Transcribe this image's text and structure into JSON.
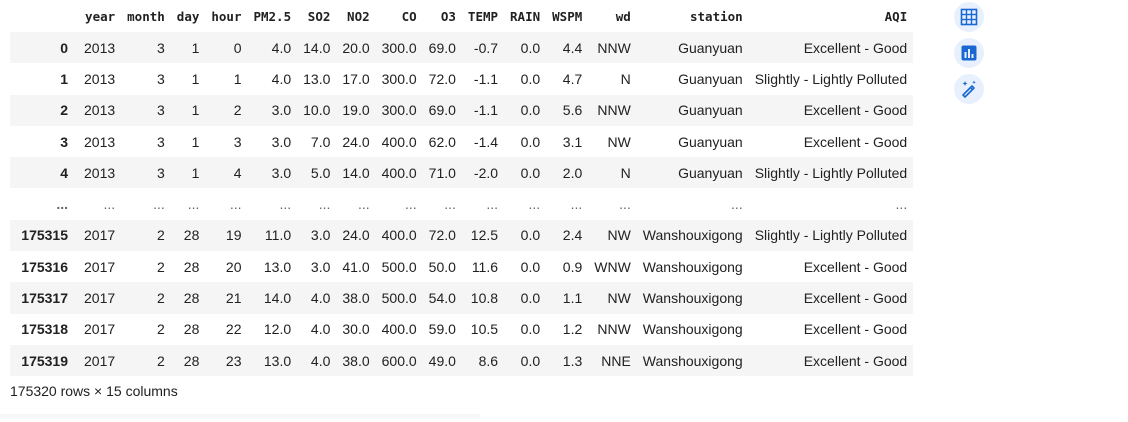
{
  "table": {
    "columns": [
      "year",
      "month",
      "day",
      "hour",
      "PM2.5",
      "SO2",
      "NO2",
      "CO",
      "O3",
      "TEMP",
      "RAIN",
      "WSPM",
      "wd",
      "station",
      "AQI"
    ],
    "rows": [
      {
        "index": "0",
        "cells": [
          "2013",
          "3",
          "1",
          "0",
          "4.0",
          "14.0",
          "20.0",
          "300.0",
          "69.0",
          "-0.7",
          "0.0",
          "4.4",
          "NNW",
          "Guanyuan",
          "Excellent - Good"
        ]
      },
      {
        "index": "1",
        "cells": [
          "2013",
          "3",
          "1",
          "1",
          "4.0",
          "13.0",
          "17.0",
          "300.0",
          "72.0",
          "-1.1",
          "0.0",
          "4.7",
          "N",
          "Guanyuan",
          "Slightly - Lightly Polluted"
        ]
      },
      {
        "index": "2",
        "cells": [
          "2013",
          "3",
          "1",
          "2",
          "3.0",
          "10.0",
          "19.0",
          "300.0",
          "69.0",
          "-1.1",
          "0.0",
          "5.6",
          "NNW",
          "Guanyuan",
          "Excellent - Good"
        ]
      },
      {
        "index": "3",
        "cells": [
          "2013",
          "3",
          "1",
          "3",
          "3.0",
          "7.0",
          "24.0",
          "400.0",
          "62.0",
          "-1.4",
          "0.0",
          "3.1",
          "NW",
          "Guanyuan",
          "Excellent - Good"
        ]
      },
      {
        "index": "4",
        "cells": [
          "2013",
          "3",
          "1",
          "4",
          "3.0",
          "5.0",
          "14.0",
          "400.0",
          "71.0",
          "-2.0",
          "0.0",
          "2.0",
          "N",
          "Guanyuan",
          "Slightly - Lightly Polluted"
        ]
      },
      {
        "index": "...",
        "cells": [
          "...",
          "...",
          "...",
          "...",
          "...",
          "...",
          "...",
          "...",
          "...",
          "...",
          "...",
          "...",
          "...",
          "...",
          "..."
        ]
      },
      {
        "index": "175315",
        "cells": [
          "2017",
          "2",
          "28",
          "19",
          "11.0",
          "3.0",
          "24.0",
          "400.0",
          "72.0",
          "12.5",
          "0.0",
          "2.4",
          "NW",
          "Wanshouxigong",
          "Slightly - Lightly Polluted"
        ]
      },
      {
        "index": "175316",
        "cells": [
          "2017",
          "2",
          "28",
          "20",
          "13.0",
          "3.0",
          "41.0",
          "500.0",
          "50.0",
          "11.6",
          "0.0",
          "0.9",
          "WNW",
          "Wanshouxigong",
          "Excellent - Good"
        ]
      },
      {
        "index": "175317",
        "cells": [
          "2017",
          "2",
          "28",
          "21",
          "14.0",
          "4.0",
          "38.0",
          "500.0",
          "54.0",
          "10.8",
          "0.0",
          "1.1",
          "NW",
          "Wanshouxigong",
          "Excellent - Good"
        ]
      },
      {
        "index": "175318",
        "cells": [
          "2017",
          "2",
          "28",
          "22",
          "12.0",
          "4.0",
          "30.0",
          "400.0",
          "59.0",
          "10.5",
          "0.0",
          "1.2",
          "NNW",
          "Wanshouxigong",
          "Excellent - Good"
        ]
      },
      {
        "index": "175319",
        "cells": [
          "2017",
          "2",
          "28",
          "23",
          "13.0",
          "4.0",
          "38.0",
          "600.0",
          "49.0",
          "8.6",
          "0.0",
          "1.3",
          "NNE",
          "Wanshouxigong",
          "Excellent - Good"
        ]
      }
    ]
  },
  "shape_note": "175320 rows × 15 columns",
  "side_tools": [
    {
      "icon": "table-icon"
    },
    {
      "icon": "bar-chart-icon"
    },
    {
      "icon": "magic-wand-icon"
    }
  ],
  "colors": {
    "accent": "#1967d2",
    "stripe": "#f5f5f5"
  }
}
